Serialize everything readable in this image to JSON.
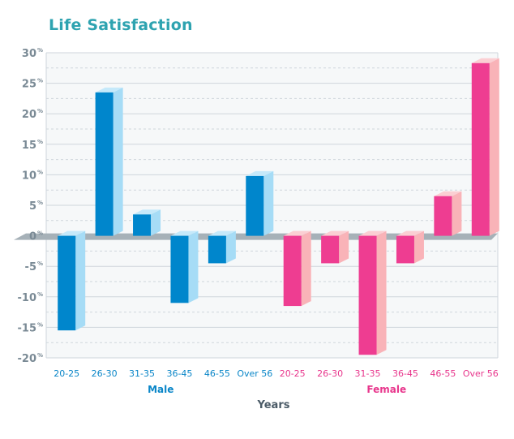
{
  "chart_data": {
    "type": "bar",
    "title": "Life Satisfaction",
    "xlabel": "Years",
    "ylabel": "",
    "ylim": [
      -20,
      30
    ],
    "yticks": [
      30,
      25,
      20,
      15,
      10,
      5,
      0,
      -5,
      -10,
      -15,
      -20
    ],
    "ytick_unit": "%",
    "groups": [
      {
        "name": "Male",
        "color": "#0086cc",
        "side_color": "#a6dcf6",
        "top_color": "#c5e9fa",
        "label_color": "#0a86c8",
        "categories": [
          "20-25",
          "26-30",
          "31-35",
          "36-45",
          "46-55",
          "Over 56"
        ],
        "values": [
          -15.5,
          23.5,
          3.5,
          -11,
          -4.5,
          9.8
        ]
      },
      {
        "name": "Female",
        "color": "#ee3d91",
        "side_color": "#f9b3b8",
        "top_color": "#fbcfd3",
        "label_color": "#e8368c",
        "categories": [
          "20-25",
          "26-30",
          "31-35",
          "36-45",
          "46-55",
          "Over 56"
        ],
        "values": [
          -11.5,
          -4.5,
          -19.5,
          -4.5,
          6.5,
          28.3
        ]
      }
    ],
    "grid": true,
    "legend": "none"
  },
  "colors": {
    "title": "#2ea3b0",
    "tick_text": "#7a8a95",
    "axis_title": "#4a5a66",
    "grid": "#cfd6dc",
    "zero_band": "#a6b1b8"
  }
}
